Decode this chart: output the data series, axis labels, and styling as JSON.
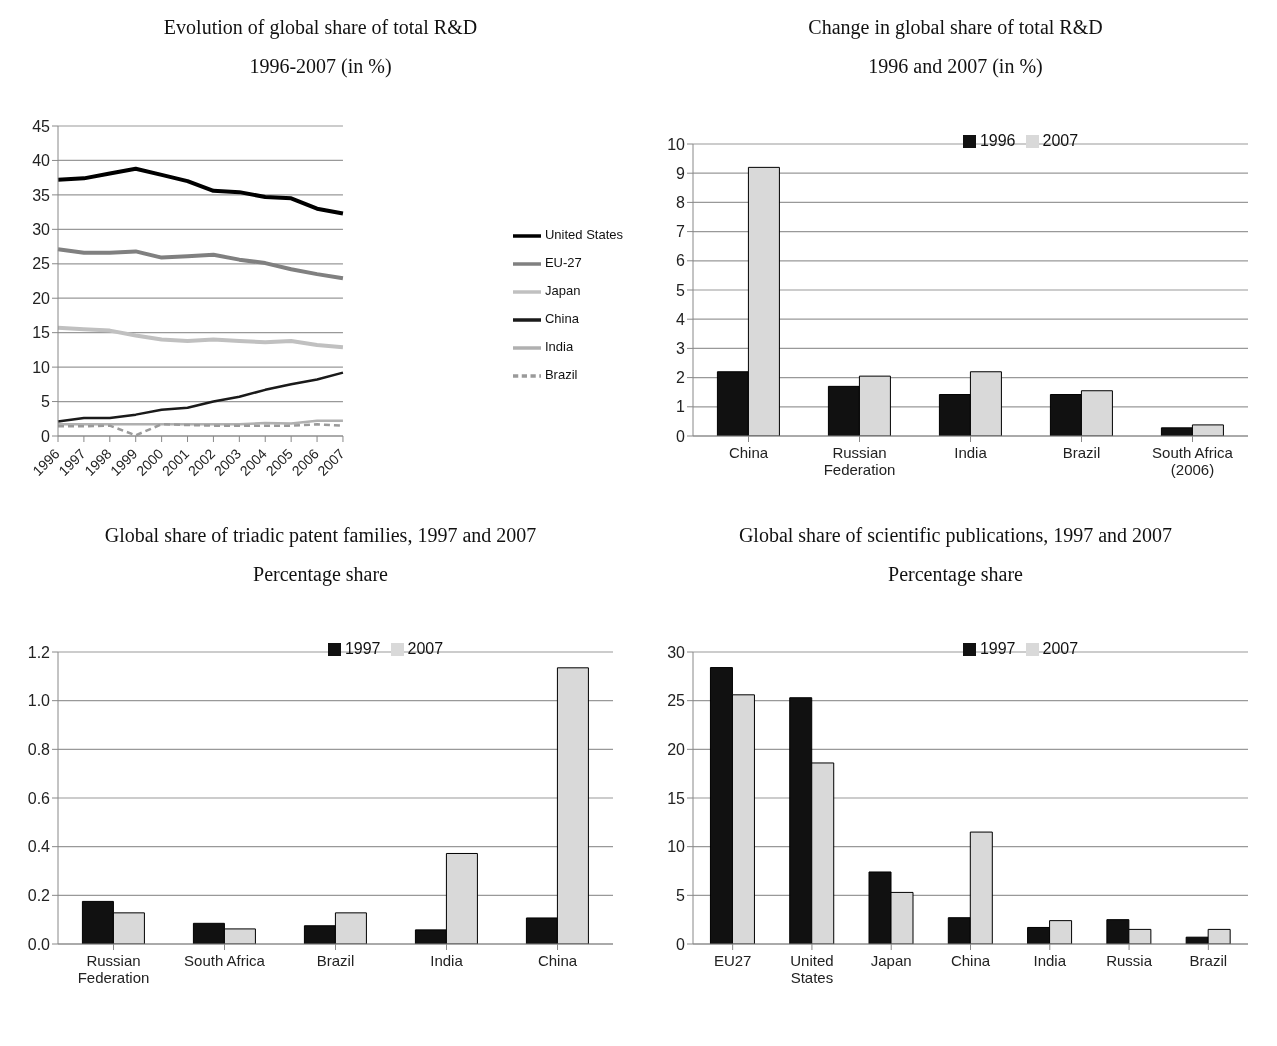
{
  "chart_data": [
    {
      "type": "line",
      "title": "Evolution of global share of total R&D",
      "subtitle": "1996-2007 (in %)",
      "categories": [
        "1996",
        "1997",
        "1998",
        "1999",
        "2000",
        "2001",
        "2002",
        "2003",
        "2004",
        "2005",
        "2006",
        "2007"
      ],
      "series": [
        {
          "name": "United States",
          "color": "#000000",
          "values": [
            37.2,
            37.4,
            38.1,
            38.8,
            37.9,
            37.0,
            35.6,
            35.4,
            34.7,
            34.5,
            33.0,
            32.3
          ]
        },
        {
          "name": "EU-27",
          "color": "#808080",
          "values": [
            27.1,
            26.6,
            26.6,
            26.8,
            25.9,
            26.1,
            26.3,
            25.6,
            25.1,
            24.2,
            23.5,
            22.9
          ]
        },
        {
          "name": "Japan",
          "color": "#c0c0c0",
          "values": [
            15.7,
            15.5,
            15.3,
            14.6,
            14.0,
            13.8,
            14.0,
            13.8,
            13.6,
            13.8,
            13.2,
            12.9
          ]
        },
        {
          "name": "China",
          "color": "#1a1a1a",
          "values": [
            2.1,
            2.6,
            2.6,
            3.1,
            3.8,
            4.1,
            5.0,
            5.7,
            6.7,
            7.5,
            8.2,
            9.2
          ]
        },
        {
          "name": "India",
          "color": "#b0b0b0",
          "values": [
            1.7,
            1.7,
            1.7,
            1.7,
            1.7,
            1.7,
            1.7,
            1.7,
            1.9,
            1.8,
            2.2,
            2.2
          ]
        },
        {
          "name": "Brazil",
          "color": "#9a9a9a",
          "line_style": "dashed",
          "values": [
            1.4,
            1.4,
            1.5,
            0.1,
            1.7,
            1.6,
            1.5,
            1.5,
            1.5,
            1.5,
            1.7,
            1.5
          ]
        }
      ],
      "ylim": [
        0,
        45
      ],
      "yticks": [
        0,
        5,
        10,
        15,
        20,
        25,
        30,
        35,
        40,
        45
      ],
      "grid": "y",
      "legend": "right",
      "marker": "none"
    },
    {
      "type": "bar",
      "title": "Change in global share of total R&D",
      "subtitle": "1996 and 2007 (in %)",
      "categories": [
        "China",
        "Russian Federation",
        "India",
        "Brazil",
        "South Africa (2006)"
      ],
      "series": [
        {
          "name": "1996",
          "color": "#111111",
          "values": [
            2.2,
            1.7,
            1.42,
            1.42,
            0.28
          ]
        },
        {
          "name": "2007",
          "color": "#d9d9d9",
          "values": [
            9.2,
            2.05,
            2.2,
            1.55,
            0.38
          ]
        }
      ],
      "ylim": [
        0,
        10
      ],
      "yticks": [
        0,
        1,
        2,
        3,
        4,
        5,
        6,
        7,
        8,
        9,
        10
      ],
      "grid": "y",
      "legend": "top"
    },
    {
      "type": "bar",
      "title": "Global share of triadic patent families, 1997 and 2007",
      "subtitle": "Percentage share",
      "categories": [
        "Russian Federation",
        "South Africa",
        "Brazil",
        "India",
        "China"
      ],
      "series": [
        {
          "name": "1997",
          "color": "#111111",
          "values": [
            0.175,
            0.085,
            0.075,
            0.058,
            0.107
          ]
        },
        {
          "name": "2007",
          "color": "#d9d9d9",
          "values": [
            0.128,
            0.062,
            0.128,
            0.372,
            1.135
          ]
        }
      ],
      "ylim": [
        0,
        1.2
      ],
      "yticks": [
        {
          "value": 0,
          "label": "0.0"
        },
        0.2,
        0.4,
        0.6,
        0.8,
        {
          "value": 1,
          "label": "1.0"
        },
        1.2
      ],
      "grid": "y",
      "legend": "top"
    },
    {
      "type": "bar",
      "title": "Global share of scientific publications, 1997 and 2007",
      "subtitle": "Percentage share",
      "categories": [
        "EU27",
        "United States",
        "Japan",
        "China",
        "India",
        "Russia",
        "Brazil"
      ],
      "series": [
        {
          "name": "1997",
          "color": "#111111",
          "values": [
            28.4,
            25.3,
            7.4,
            2.7,
            1.7,
            2.5,
            0.7
          ]
        },
        {
          "name": "2007",
          "color": "#d9d9d9",
          "values": [
            25.6,
            18.6,
            5.3,
            11.5,
            2.4,
            1.5,
            1.5
          ]
        }
      ],
      "ylim": [
        0,
        30
      ],
      "yticks": [
        0,
        5,
        10,
        15,
        20,
        25,
        30
      ],
      "grid": "y",
      "legend": "top"
    }
  ]
}
